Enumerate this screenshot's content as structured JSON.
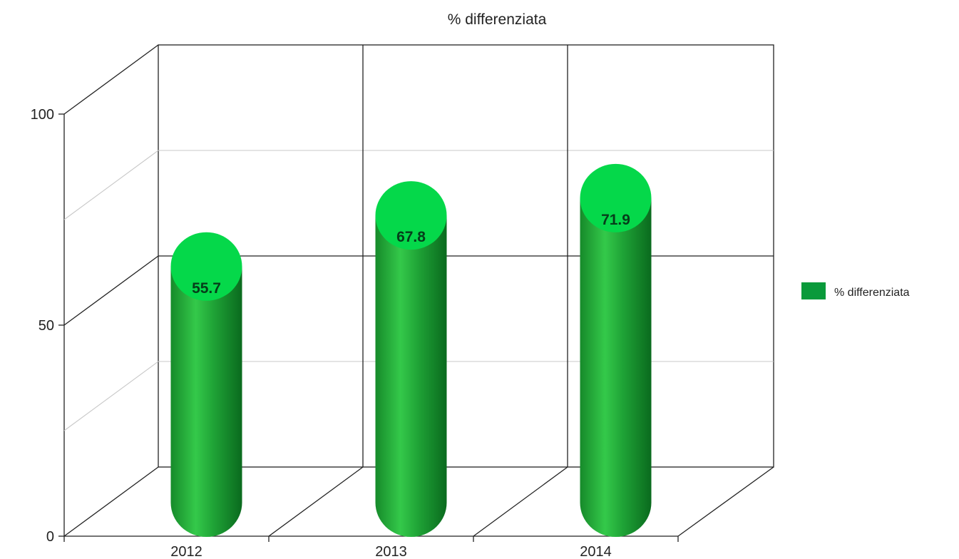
{
  "chart_data": {
    "type": "bar",
    "title": "% differenziata",
    "categories": [
      "2012",
      "2013",
      "2014"
    ],
    "series": [
      {
        "name": "% differenziata",
        "values": [
          55.7,
          67.8,
          71.9
        ],
        "data_labels": [
          "55.7",
          "67.8",
          "71.9"
        ]
      }
    ],
    "ylim": [
      0,
      100
    ],
    "y_ticks": [
      0,
      50,
      100
    ],
    "y_tick_labels": [
      "0",
      "50",
      "100"
    ],
    "grid": true,
    "legend_position": "right",
    "colors": {
      "bar_body": "#1e9b34",
      "bar_top": "#05d84a",
      "legend": "#0a9a3b"
    }
  }
}
